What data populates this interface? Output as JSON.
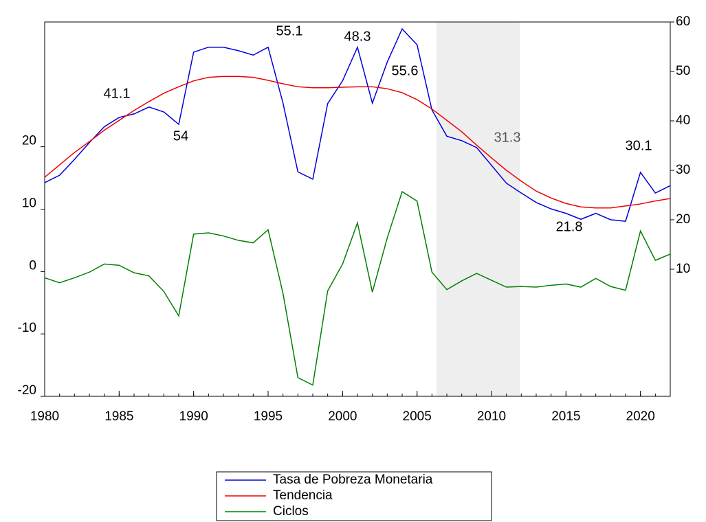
{
  "chart_data": {
    "type": "line",
    "x": [
      1980,
      1981,
      1982,
      1983,
      1984,
      1985,
      1986,
      1987,
      1988,
      1989,
      1990,
      1991,
      1992,
      1993,
      1994,
      1995,
      1996,
      1997,
      1998,
      1999,
      2000,
      2001,
      2002,
      2003,
      2004,
      2005,
      2006,
      2007,
      2008,
      2009,
      2010,
      2011,
      2012,
      2013,
      2014,
      2015,
      2016,
      2017,
      2018,
      2019,
      2020,
      2021,
      2022
    ],
    "series": [
      {
        "name": "Tasa de Pobreza Monetaria",
        "color": "#0000dd",
        "axis": "y2",
        "values": [
          27.5,
          29.0,
          32.2,
          35.6,
          38.8,
          40.7,
          41.4,
          42.8,
          41.8,
          39.3,
          53.9,
          54.9,
          54.9,
          54.2,
          53.3,
          54.9,
          43.6,
          29.7,
          28.2,
          43.5,
          48.1,
          54.9,
          43.6,
          51.9,
          58.6,
          55.4,
          42.2,
          36.9,
          36.0,
          34.6,
          31.0,
          27.4,
          25.4,
          23.5,
          22.2,
          21.3,
          20.1,
          21.3,
          20.0,
          19.7,
          29.6,
          25.4,
          26.9
        ]
      },
      {
        "name": "Tendencia",
        "color": "#ee0000",
        "axis": "y2",
        "values": [
          28.6,
          31.1,
          33.6,
          35.8,
          38.1,
          40.1,
          42.1,
          43.9,
          45.6,
          46.9,
          48.1,
          48.8,
          49.0,
          49.0,
          48.8,
          48.2,
          47.5,
          46.9,
          46.7,
          46.7,
          46.8,
          46.9,
          46.9,
          46.5,
          45.7,
          44.3,
          42.4,
          40.1,
          37.8,
          35.1,
          32.5,
          30.0,
          27.8,
          25.8,
          24.4,
          23.3,
          22.6,
          22.4,
          22.4,
          22.8,
          23.2,
          23.8,
          24.3
        ]
      },
      {
        "name": "Ciclos",
        "color": "#008000",
        "axis": "y",
        "values": [
          -1.0,
          -1.8,
          -1.0,
          -0.1,
          1.2,
          1.0,
          -0.2,
          -0.7,
          -3.2,
          -7.1,
          6.0,
          6.2,
          5.7,
          5.0,
          4.6,
          6.7,
          -3.5,
          -17.0,
          -18.2,
          -3.1,
          1.2,
          7.8,
          -3.3,
          5.4,
          12.8,
          11.3,
          -0.1,
          -2.9,
          -1.5,
          -0.3,
          -1.4,
          -2.5,
          -2.4,
          -2.5,
          -2.2,
          -2.0,
          -2.5,
          -1.1,
          -2.4,
          -3.0,
          6.5,
          1.8,
          2.8
        ]
      }
    ],
    "xlim": [
      1980,
      2022
    ],
    "xticks": [
      1980,
      1985,
      1990,
      1995,
      2000,
      2005,
      2010,
      2015,
      2020
    ],
    "ylim": [
      -20,
      40
    ],
    "yticks": [
      -20,
      -10,
      0,
      10,
      20
    ],
    "y2lim": [
      -15.7,
      60
    ],
    "y2ticks": [
      10,
      20,
      30,
      40,
      50,
      60
    ],
    "shaded_region": [
      2006.3,
      2011.9
    ],
    "annotations": [
      {
        "text": "41.1"
      },
      {
        "text": "54"
      },
      {
        "text": "55.1"
      },
      {
        "text": "48.3"
      },
      {
        "text": "55.6"
      },
      {
        "text": "31.3",
        "color": "#555555"
      },
      {
        "text": "21.8"
      },
      {
        "text": "30.1"
      }
    ]
  }
}
